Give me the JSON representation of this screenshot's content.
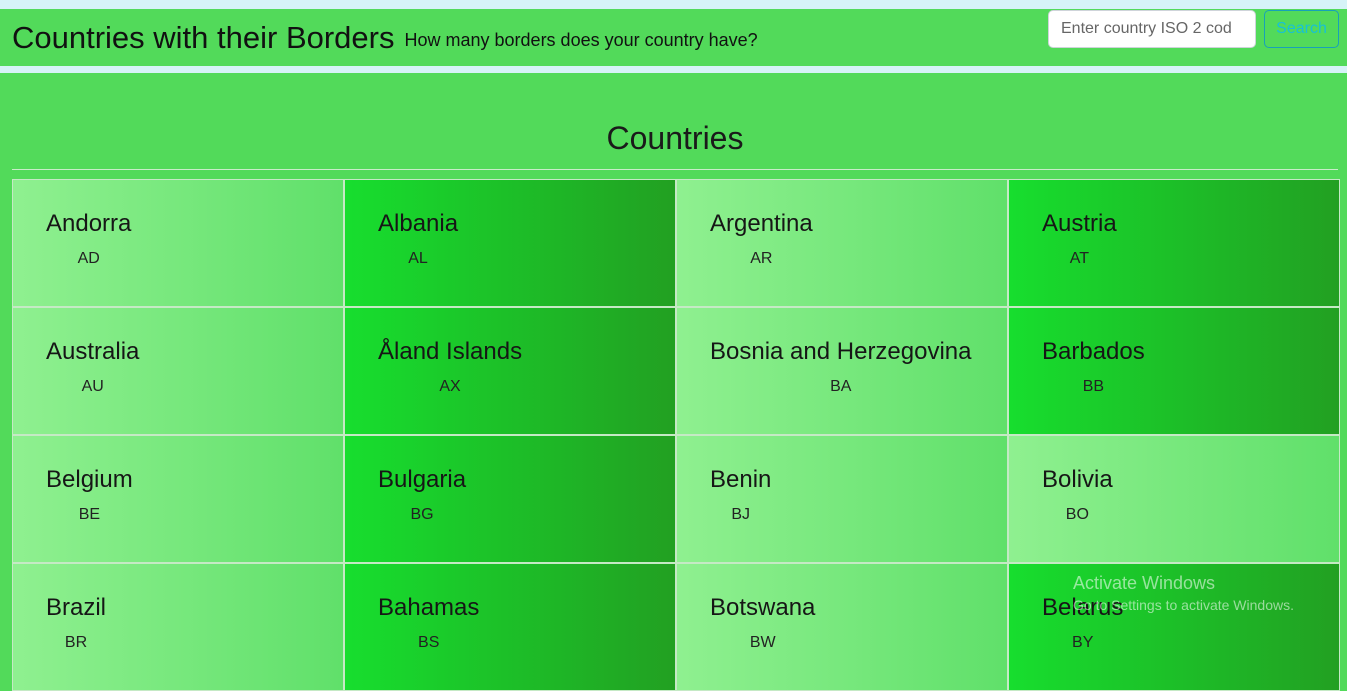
{
  "header": {
    "title": "Countries with their Borders",
    "subtitle": "How many borders does your country have?",
    "search_placeholder": "Enter country ISO 2 cod",
    "search_button": "Search"
  },
  "section": {
    "title": "Countries"
  },
  "countries": [
    {
      "name": "Andorra",
      "code": "AD"
    },
    {
      "name": "Albania",
      "code": "AL"
    },
    {
      "name": "Argentina",
      "code": "AR"
    },
    {
      "name": "Austria",
      "code": "AT"
    },
    {
      "name": "Australia",
      "code": "AU"
    },
    {
      "name": "Åland Islands",
      "code": "AX"
    },
    {
      "name": "Bosnia and Herzegovina",
      "code": "BA"
    },
    {
      "name": "Barbados",
      "code": "BB"
    },
    {
      "name": "Belgium",
      "code": "BE"
    },
    {
      "name": "Bulgaria",
      "code": "BG"
    },
    {
      "name": "Benin",
      "code": "BJ"
    },
    {
      "name": "Bolivia",
      "code": "BO"
    },
    {
      "name": "Brazil",
      "code": "BR"
    },
    {
      "name": "Bahamas",
      "code": "BS"
    },
    {
      "name": "Botswana",
      "code": "BW"
    },
    {
      "name": "Belarus",
      "code": "BY"
    }
  ],
  "watermark": {
    "title": "Activate Windows",
    "subtitle": "Go to Settings to activate Windows."
  }
}
